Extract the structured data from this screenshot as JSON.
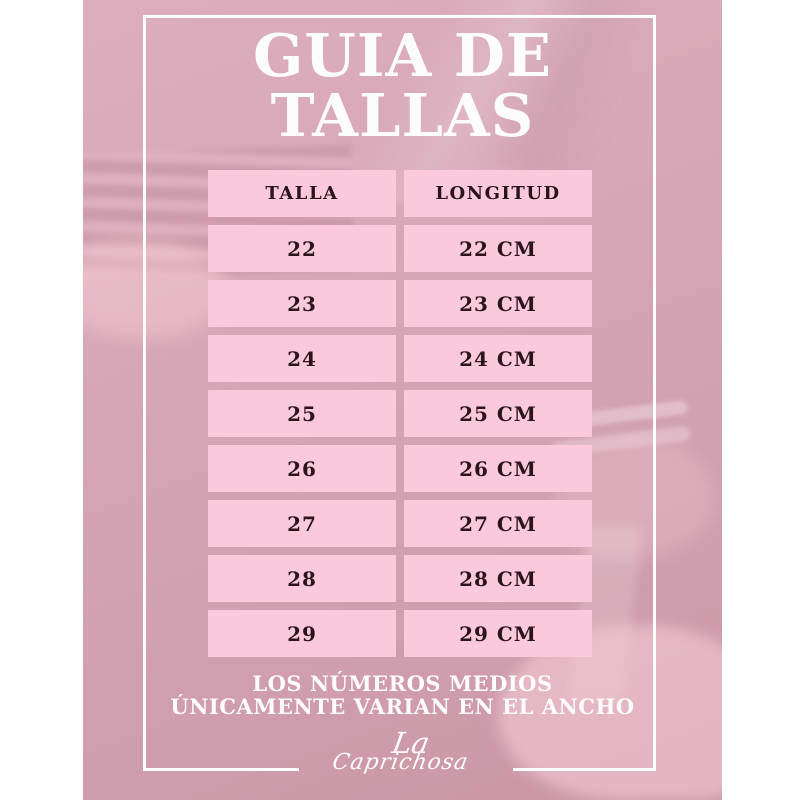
{
  "poster": {
    "title": {
      "line1": "GUIA DE",
      "line2": "TALLAS"
    },
    "table": {
      "headers": {
        "talla": "TALLA",
        "longitud": "LONGITUD"
      },
      "rows": [
        {
          "talla": "22",
          "longitud": "22 CM"
        },
        {
          "talla": "23",
          "longitud": "23 CM"
        },
        {
          "talla": "24",
          "longitud": "24 CM"
        },
        {
          "talla": "25",
          "longitud": "25 CM"
        },
        {
          "talla": "26",
          "longitud": "26 CM"
        },
        {
          "talla": "27",
          "longitud": "27 CM"
        },
        {
          "talla": "28",
          "longitud": "28 CM"
        },
        {
          "talla": "29",
          "longitud": "29 CM"
        }
      ]
    },
    "note": {
      "line1": "LOS NÚMEROS MEDIOS",
      "line2": "ÚNICAMENTE VARIAN EN EL ANCHO"
    },
    "logo": {
      "line1": "La",
      "line2": "Caprichosa"
    },
    "colors": {
      "background_rose": "#d5a4b4",
      "cell_pink": "#fcc9dc",
      "cell_text": "#2a151d",
      "frame_white": "#ffffff"
    }
  }
}
